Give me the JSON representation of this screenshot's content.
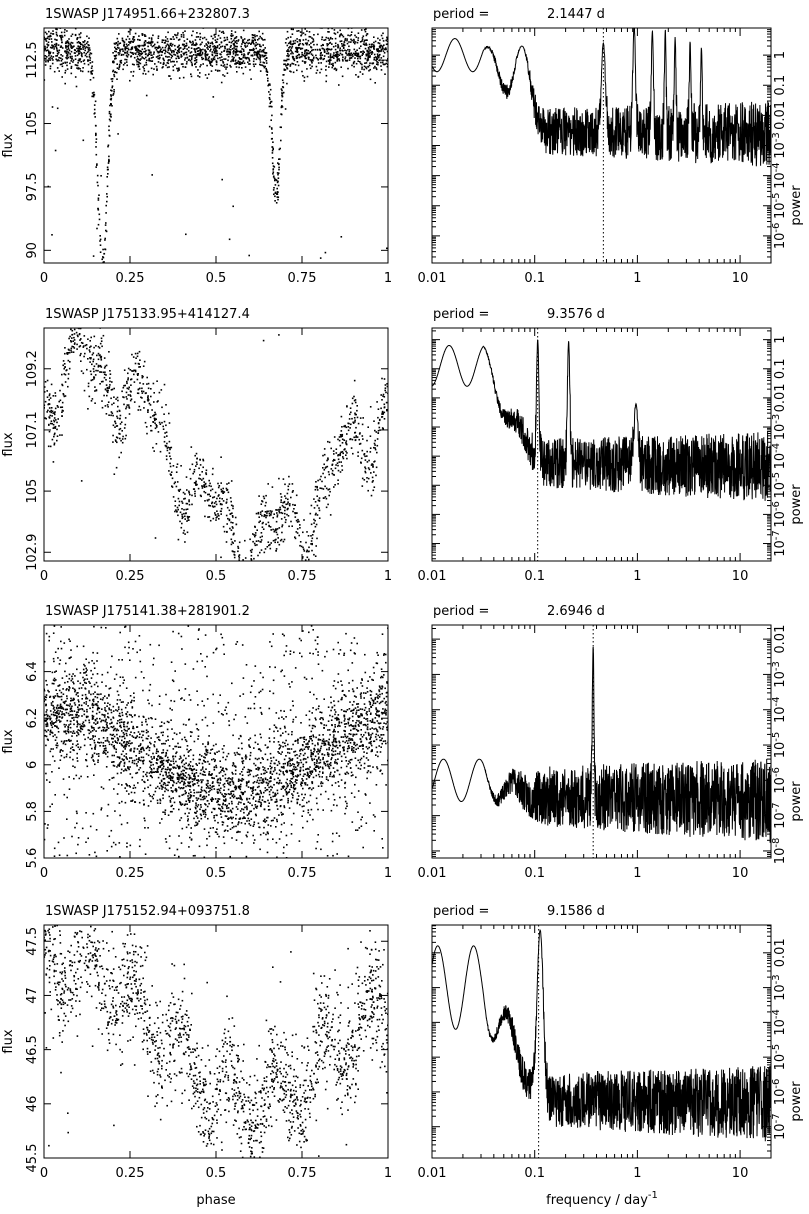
{
  "xlabel_left": "phase",
  "xlabel_right": "frequency / day",
  "xlabel_right_sup": "-1",
  "ylabel_left": "flux",
  "ylabel_right": "power",
  "period_prefix": "period =",
  "chart_data": [
    {
      "name": "1SWASP J174951.66+232807.3",
      "period": "2.1447 d",
      "lightcurve": {
        "type": "scatter",
        "xlabel": "phase",
        "ylabel": "flux",
        "xlim": [
          0,
          1
        ],
        "ylim": [
          88.5,
          116.3
        ],
        "xticks": [
          "0",
          "0.25",
          "0.5",
          "0.75",
          "1"
        ],
        "yticks": [
          "90",
          "97.5",
          "105",
          "112.5"
        ],
        "ytick_values": [
          90,
          97.5,
          105,
          112.5
        ],
        "model": {
          "baseline": 113.5,
          "scatter": 1.3,
          "outlier_fraction": 0.012,
          "dips": [
            [
              0.17,
              26,
              0.014
            ],
            [
              0.675,
              17,
              0.012
            ]
          ],
          "waves": [],
          "slope": 0,
          "n": 2200,
          "seed": 11
        }
      },
      "periodogram": {
        "type": "line",
        "xlabel": "frequency / day^-1",
        "ylabel": "power",
        "xscale": "log",
        "yscale": "log",
        "xlim": [
          0.01,
          20
        ],
        "ylim_log10": [
          -6.9,
          0.9
        ],
        "xticks": [
          "0.01",
          "0.1",
          "1",
          "10"
        ],
        "xtick_values": [
          0.01,
          0.1,
          1,
          10
        ],
        "yticks": [
          "10^-6",
          "10^-5",
          "10^-4",
          "10^-3",
          "0.01",
          "0.1",
          "1"
        ],
        "ytick_values": [
          -6,
          -5,
          -4,
          -3,
          -2,
          -1,
          0
        ],
        "peak_frequency": 0.4663,
        "model": {
          "start": 0.0,
          "drop": 1.8,
          "noise_level": -2.3,
          "noise_amp": 1.0,
          "low_ripple": 0.55,
          "peaks": [
            [
              0.075,
              0.3,
              0.07
            ],
            [
              0.466,
              0.4,
              0.02
            ],
            [
              0.93,
              1.05,
              0.012
            ],
            [
              1.4,
              0.8,
              0.01
            ],
            [
              1.87,
              0.85,
              0.008
            ],
            [
              2.33,
              0.6,
              0.008
            ],
            [
              3.26,
              0.45,
              0.008
            ],
            [
              4.2,
              0.25,
              0.008
            ]
          ],
          "seed": 21
        }
      }
    },
    {
      "name": "1SWASP J175133.95+414127.4",
      "period": "9.3576 d",
      "lightcurve": {
        "type": "scatter",
        "xlabel": "phase",
        "ylabel": "flux",
        "xlim": [
          0,
          1
        ],
        "ylim": [
          102.6,
          110.6
        ],
        "xticks": [
          "0",
          "0.25",
          "0.5",
          "0.75",
          "1"
        ],
        "yticks": [
          "102.9",
          "105",
          "107.1",
          "109.2"
        ],
        "ytick_values": [
          102.9,
          105,
          107.1,
          109.2
        ],
        "model": {
          "baseline": 106.2,
          "scatter": 0.55,
          "outlier_fraction": 0.005,
          "dips": [],
          "waves": [
            [
              2.8,
              1,
              0.12
            ],
            [
              0.9,
              5.3,
              0.3
            ],
            [
              0.6,
              11,
              0.9
            ]
          ],
          "slope": -0.5,
          "n": 1400,
          "seed": 12
        }
      },
      "periodogram": {
        "type": "line",
        "xlabel": "frequency / day^-1",
        "ylabel": "power",
        "xscale": "log",
        "yscale": "log",
        "xlim": [
          0.01,
          20
        ],
        "ylim_log10": [
          -7.6,
          0.4
        ],
        "xticks": [
          "0.01",
          "0.1",
          "1",
          "10"
        ],
        "xtick_values": [
          0.01,
          0.1,
          1,
          10
        ],
        "yticks": [
          "10^-7",
          "10^-6",
          "10^-5",
          "10^-4",
          "10^-3",
          "0.01",
          "0.1",
          "1"
        ],
        "ytick_values": [
          -7,
          -6,
          -5,
          -4,
          -3,
          -2,
          -1,
          0
        ],
        "peak_frequency": 0.1069,
        "model": {
          "start": -0.9,
          "drop": 2.6,
          "noise_level": -4.0,
          "noise_amp": 1.1,
          "low_ripple": 0.7,
          "peaks": [
            [
              0.107,
              0.0,
              0.012
            ],
            [
              0.214,
              -0.05,
              0.012
            ],
            [
              0.97,
              -2.2,
              0.02
            ]
          ],
          "seed": 22
        }
      }
    },
    {
      "name": "1SWASP J175141.38+281901.2",
      "period": "2.6946 d",
      "lightcurve": {
        "type": "scatter",
        "xlabel": "phase",
        "ylabel": "flux",
        "xlim": [
          0,
          1
        ],
        "ylim": [
          5.6,
          6.6
        ],
        "xticks": [
          "0",
          "0.25",
          "0.5",
          "0.75",
          "1"
        ],
        "yticks": [
          "5.6",
          "5.8",
          "6",
          "6.2",
          "6.4"
        ],
        "ytick_values": [
          5.6,
          5.8,
          6.0,
          6.2,
          6.4
        ],
        "model": {
          "baseline": 6.05,
          "scatter": 0.1,
          "outlier_fraction": 0.2,
          "dips": [],
          "waves": [
            [
              0.18,
              1,
              0.05
            ]
          ],
          "slope": 0,
          "n": 3400,
          "seed": 13
        }
      },
      "periodogram": {
        "type": "line",
        "xlabel": "frequency / day^-1",
        "ylabel": "power",
        "xscale": "log",
        "yscale": "log",
        "xlim": [
          0.01,
          20
        ],
        "ylim_log10": [
          -8.2,
          -1.6
        ],
        "xticks": [
          "0.01",
          "0.1",
          "1",
          "10"
        ],
        "xtick_values": [
          0.01,
          0.1,
          1,
          10
        ],
        "yticks": [
          "10^-8",
          "10^-7",
          "10^-6",
          "10^-5",
          "10^-4",
          "10^-3",
          "0.01"
        ],
        "ytick_values": [
          -8,
          -7,
          -6,
          -5,
          -4,
          -3,
          -2
        ],
        "peak_frequency": 0.3711,
        "model": {
          "start": -6.0,
          "drop": 0.5,
          "noise_level": -6.2,
          "noise_amp": 1.1,
          "low_ripple": 0.6,
          "peaks": [
            [
              0.371,
              -2.2,
              0.008
            ]
          ],
          "seed": 23
        }
      }
    },
    {
      "name": "1SWASP J175152.94+093751.8",
      "period": "9.1586 d",
      "lightcurve": {
        "type": "scatter",
        "xlabel": "phase",
        "ylabel": "flux",
        "xlim": [
          0,
          1
        ],
        "ylim": [
          45.5,
          47.65
        ],
        "xticks": [
          "0",
          "0.25",
          "0.5",
          "0.75",
          "1"
        ],
        "yticks": [
          "45.5",
          "46",
          "46.5",
          "47",
          "47.5"
        ],
        "ytick_values": [
          45.5,
          46.0,
          46.5,
          47.0,
          47.5
        ],
        "model": {
          "baseline": 46.6,
          "scatter": 0.25,
          "outlier_fraction": 0.02,
          "dips": [],
          "waves": [
            [
              0.55,
              1,
              0.08
            ],
            [
              0.25,
              7.3,
              0.4
            ]
          ],
          "slope": -0.4,
          "n": 1800,
          "seed": 14
        }
      },
      "periodogram": {
        "type": "line",
        "xlabel": "frequency / day^-1",
        "ylabel": "power",
        "xscale": "log",
        "yscale": "log",
        "xlim": [
          0.01,
          20
        ],
        "ylim_log10": [
          -7.9,
          -1.2
        ],
        "xticks": [
          "0.01",
          "0.1",
          "1",
          "10"
        ],
        "xtick_values": [
          0.01,
          0.1,
          1,
          10
        ],
        "yticks": [
          "10^-7",
          "10^-6",
          "10^-5",
          "10^-4",
          "10^-3",
          "0.01"
        ],
        "ytick_values": [
          -7,
          -6,
          -5,
          -4,
          -3,
          -2
        ],
        "peak_frequency": 0.1092,
        "model": {
          "start": -3.0,
          "drop": 1.5,
          "noise_level": -6.0,
          "noise_amp": 1.0,
          "low_ripple": 1.2,
          "peaks": [
            [
              0.113,
              -1.35,
              0.03
            ]
          ],
          "seed": 24
        }
      }
    }
  ]
}
